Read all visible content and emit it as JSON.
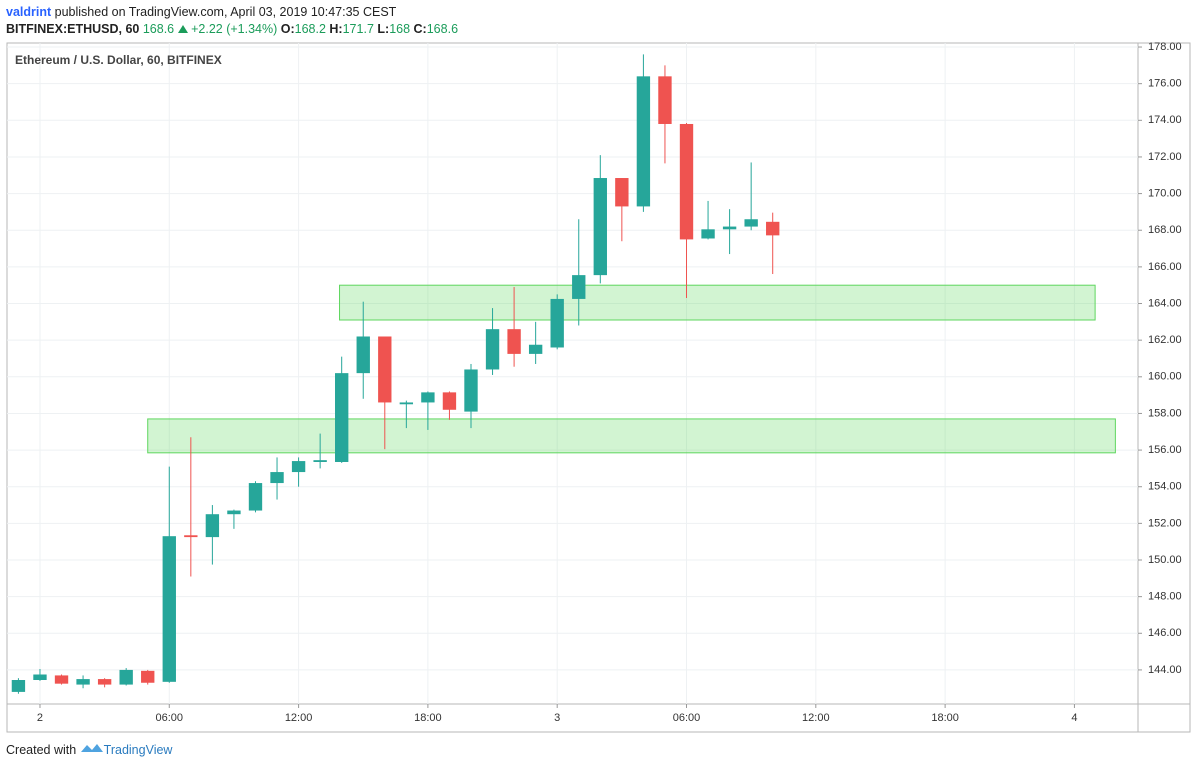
{
  "header": {
    "author": "valdrint",
    "published": "published on TradingView.com, April 03, 2019 10:47:35 CEST",
    "symbol": "BITFINEX:ETHUSD, 60",
    "change": "+2.22 (+1.34%)",
    "open_label": "O:",
    "high_label": "H:",
    "low_label": "L:",
    "close_label": "C:"
  },
  "chart_data": {
    "type": "candlestick",
    "title": "Ethereum / U.S. Dollar, 60, BITFINEX",
    "x": [
      -1,
      0,
      1,
      2,
      3,
      4,
      5,
      6,
      7,
      8,
      9,
      10,
      11,
      12,
      13,
      14,
      15,
      16,
      17,
      18,
      19,
      20,
      21,
      22,
      23,
      24,
      25,
      26,
      27,
      28,
      29,
      30,
      31,
      32,
      33,
      34
    ],
    "open": [
      142.8,
      143.45,
      143.7,
      143.2,
      143.5,
      143.2,
      143.95,
      143.35,
      151.35,
      151.25,
      152.5,
      152.7,
      154.2,
      154.8,
      155.35,
      155.35,
      160.2,
      162.2,
      158.5,
      158.6,
      159.15,
      158.1,
      160.4,
      162.6,
      161.25,
      161.6,
      164.25,
      165.55,
      170.85,
      169.3,
      176.4,
      173.8,
      167.55,
      168.05,
      168.2,
      168.46
    ],
    "high": [
      143.55,
      144.05,
      143.75,
      143.7,
      143.55,
      144.1,
      144.0,
      155.1,
      156.7,
      153.0,
      152.75,
      154.3,
      155.6,
      155.6,
      156.9,
      161.1,
      164.1,
      162.2,
      158.7,
      159.2,
      159.2,
      160.7,
      163.75,
      164.9,
      163.0,
      164.5,
      168.6,
      172.1,
      170.85,
      177.6,
      177.0,
      173.85,
      169.6,
      169.15,
      171.7,
      168.96
    ],
    "low": [
      142.7,
      143.4,
      143.2,
      143.0,
      143.05,
      143.15,
      143.2,
      143.3,
      149.1,
      149.75,
      151.7,
      152.6,
      153.3,
      154.0,
      155.0,
      155.3,
      158.8,
      156.05,
      157.2,
      157.1,
      157.65,
      157.2,
      160.1,
      160.55,
      160.7,
      161.5,
      162.8,
      165.1,
      167.4,
      169.0,
      171.65,
      164.3,
      167.5,
      166.7,
      168.0,
      165.61
    ],
    "close": [
      143.45,
      143.75,
      143.25,
      143.5,
      143.2,
      144.0,
      143.3,
      151.3,
      151.25,
      152.5,
      152.7,
      154.2,
      154.8,
      155.4,
      155.45,
      160.2,
      162.2,
      158.6,
      158.6,
      159.15,
      158.2,
      160.4,
      162.6,
      161.25,
      161.75,
      164.25,
      165.55,
      170.85,
      169.3,
      176.4,
      173.8,
      167.5,
      168.05,
      168.2,
      168.6,
      167.72
    ],
    "up_color": "#26a69a",
    "down_color": "#ef5350",
    "zones": [
      {
        "x": [
          5,
          49.9
        ],
        "y": [
          155.85,
          157.7
        ]
      },
      {
        "x": [
          13.9,
          48.96
        ],
        "y": [
          163.1,
          165.0
        ]
      }
    ],
    "zone_color": "#5ed65e",
    "xlim": [
      -1.53,
      50.95
    ],
    "ylim": [
      142.14,
      178.22
    ],
    "xticks": [
      {
        "value": 0,
        "label": "2"
      },
      {
        "value": 6,
        "label": "06:00"
      },
      {
        "value": 12,
        "label": "12:00"
      },
      {
        "value": 18,
        "label": "18:00"
      },
      {
        "value": 24,
        "label": "3"
      },
      {
        "value": 30,
        "label": "06:00"
      },
      {
        "value": 36,
        "label": "12:00"
      },
      {
        "value": 42,
        "label": "18:00"
      },
      {
        "value": 48,
        "label": "4"
      }
    ],
    "yticks": [
      {
        "value": 144,
        "label": "144.00"
      },
      {
        "value": 146,
        "label": "146.00"
      },
      {
        "value": 148,
        "label": "148.00"
      },
      {
        "value": 150,
        "label": "150.00"
      },
      {
        "value": 152,
        "label": "152.00"
      },
      {
        "value": 154,
        "label": "154.00"
      },
      {
        "value": 156,
        "label": "156.00"
      },
      {
        "value": 158,
        "label": "158.00"
      },
      {
        "value": 160,
        "label": "160.00"
      },
      {
        "value": 162,
        "label": "162.00"
      },
      {
        "value": 164,
        "label": "164.00"
      },
      {
        "value": 166,
        "label": "166.00"
      },
      {
        "value": 168,
        "label": "168.00"
      },
      {
        "value": 170,
        "label": "170.00"
      },
      {
        "value": 172,
        "label": "172.00"
      },
      {
        "value": 174,
        "label": "174.00"
      },
      {
        "value": 176,
        "label": "176.00"
      },
      {
        "value": 178,
        "label": "178.00"
      }
    ],
    "grid": true
  },
  "footer": {
    "created": "Created with",
    "brand": "TradingView"
  }
}
